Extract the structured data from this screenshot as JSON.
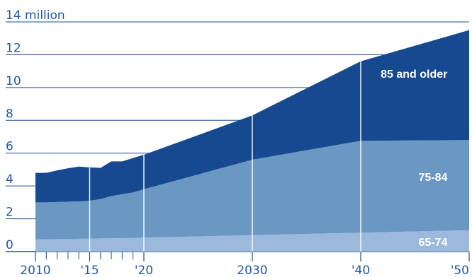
{
  "colors": {
    "s65_74": "#9bb9da",
    "s75_84": "#6b97c3",
    "s85plus": "#16498f",
    "axis_text": "#1f5aa6",
    "grid": "#1d4f95",
    "divider": "#ffffff",
    "label": "#ffffff"
  },
  "chart_data": {
    "type": "area",
    "stacked": true,
    "title": "",
    "xlabel": "",
    "ylabel": "",
    "ylim": [
      0,
      14
    ],
    "xlim": [
      2010,
      2050
    ],
    "grid": true,
    "x": [
      2010,
      2011,
      2012,
      2013,
      2014,
      2015,
      2016,
      2017,
      2018,
      2019,
      2020,
      2030,
      2040,
      2050
    ],
    "series": [
      {
        "name": "65-74",
        "values": [
          0.75,
          0.75,
          0.76,
          0.77,
          0.78,
          0.79,
          0.8,
          0.81,
          0.82,
          0.83,
          0.85,
          1.0,
          1.15,
          1.3
        ]
      },
      {
        "name": "75-84",
        "values": [
          2.25,
          2.25,
          2.26,
          2.27,
          2.28,
          2.31,
          2.4,
          2.57,
          2.68,
          2.77,
          2.95,
          4.6,
          5.6,
          5.5
        ]
      },
      {
        "name": "85 and older",
        "values": [
          1.8,
          1.8,
          1.93,
          2.04,
          2.12,
          2.03,
          1.9,
          2.12,
          2.0,
          2.1,
          2.1,
          2.7,
          4.85,
          6.7
        ]
      }
    ],
    "y_ticks": [
      {
        "value": 0,
        "label": "0"
      },
      {
        "value": 2,
        "label": "2"
      },
      {
        "value": 4,
        "label": "4"
      },
      {
        "value": 6,
        "label": "6"
      },
      {
        "value": 8,
        "label": "8"
      },
      {
        "value": 10,
        "label": "10"
      },
      {
        "value": 12,
        "label": "12"
      },
      {
        "value": 14,
        "label": "14 million"
      }
    ],
    "x_ticks": [
      {
        "value": 2010,
        "label": "2010"
      },
      {
        "value": 2015,
        "label": "'15"
      },
      {
        "value": 2020,
        "label": "'20"
      },
      {
        "value": 2030,
        "label": "2030"
      },
      {
        "value": 2040,
        "label": "'40"
      },
      {
        "value": 2050,
        "label": "'50"
      }
    ],
    "x_minor_ticks": [
      2011,
      2012,
      2013,
      2014,
      2016,
      2017,
      2018,
      2019
    ],
    "dividers": [
      2015,
      2020,
      2030,
      2040
    ],
    "series_labels": [
      {
        "series": 2,
        "text": "85 and older",
        "x": 2048,
        "y": 10.6
      },
      {
        "series": 1,
        "text": "75-84",
        "x": 2048,
        "y": 4.3
      },
      {
        "series": 0,
        "text": "65-74",
        "x": 2048,
        "y": 0.35
      }
    ]
  }
}
